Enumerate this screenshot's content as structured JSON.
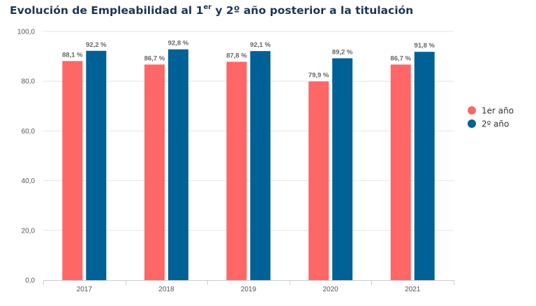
{
  "title": {
    "prefix": "Evolución de Empleabilidad al 1",
    "sup": "er",
    "suffix": " y 2º año posterior a la titulación"
  },
  "colors": {
    "series1": "#ff6666",
    "series2": "#006197"
  },
  "chart_data": {
    "type": "bar",
    "categories": [
      "2017",
      "2018",
      "2019",
      "2020",
      "2021"
    ],
    "series": [
      {
        "name": "1er año",
        "values": [
          88.1,
          86.7,
          87.8,
          79.9,
          86.7
        ],
        "labels": [
          "88,1 %",
          "86,7 %",
          "87,8 %",
          "79,9 %",
          "86,7 %"
        ]
      },
      {
        "name": "2º año",
        "values": [
          92.2,
          92.8,
          92.1,
          89.2,
          91.8
        ],
        "labels": [
          "92,2 %",
          "92,8 %",
          "92,1 %",
          "89,2 %",
          "91,8 %"
        ]
      }
    ],
    "ylim": [
      0,
      100
    ],
    "yticks": [
      0,
      20,
      40,
      60,
      80,
      100
    ],
    "ytick_labels": [
      "0,0",
      "20,0",
      "40,0",
      "60,0",
      "80,0",
      "100,0"
    ],
    "grid": true,
    "legend": "right"
  }
}
